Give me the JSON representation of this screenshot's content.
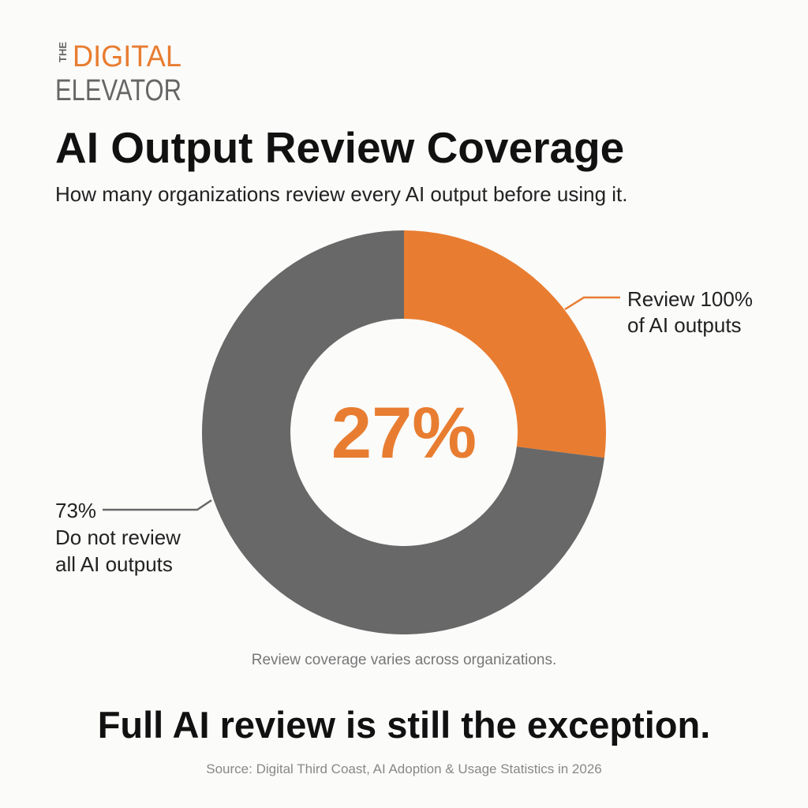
{
  "brand": {
    "the": "THE",
    "digital": "DIGITAL",
    "elevator": "ELEVATOR"
  },
  "chart_data": {
    "type": "donut",
    "title": "AI Output Review Coverage",
    "subtitle": "How many organizations review every AI output before using it.",
    "categories": [
      [
        "Review 100%",
        "of AI outputs"
      ],
      [
        "Do not review",
        "all AI outputs"
      ]
    ],
    "values": [
      27,
      73
    ],
    "value_labels": [
      "27%",
      "73%"
    ],
    "colors": [
      "#e87d31",
      "#686868"
    ],
    "note": "Review coverage varies across organizations."
  },
  "headline": "Full AI review is still the exception.",
  "source": "Source: Digital Third Coast, AI Adoption & Usage Statistics in 2026"
}
